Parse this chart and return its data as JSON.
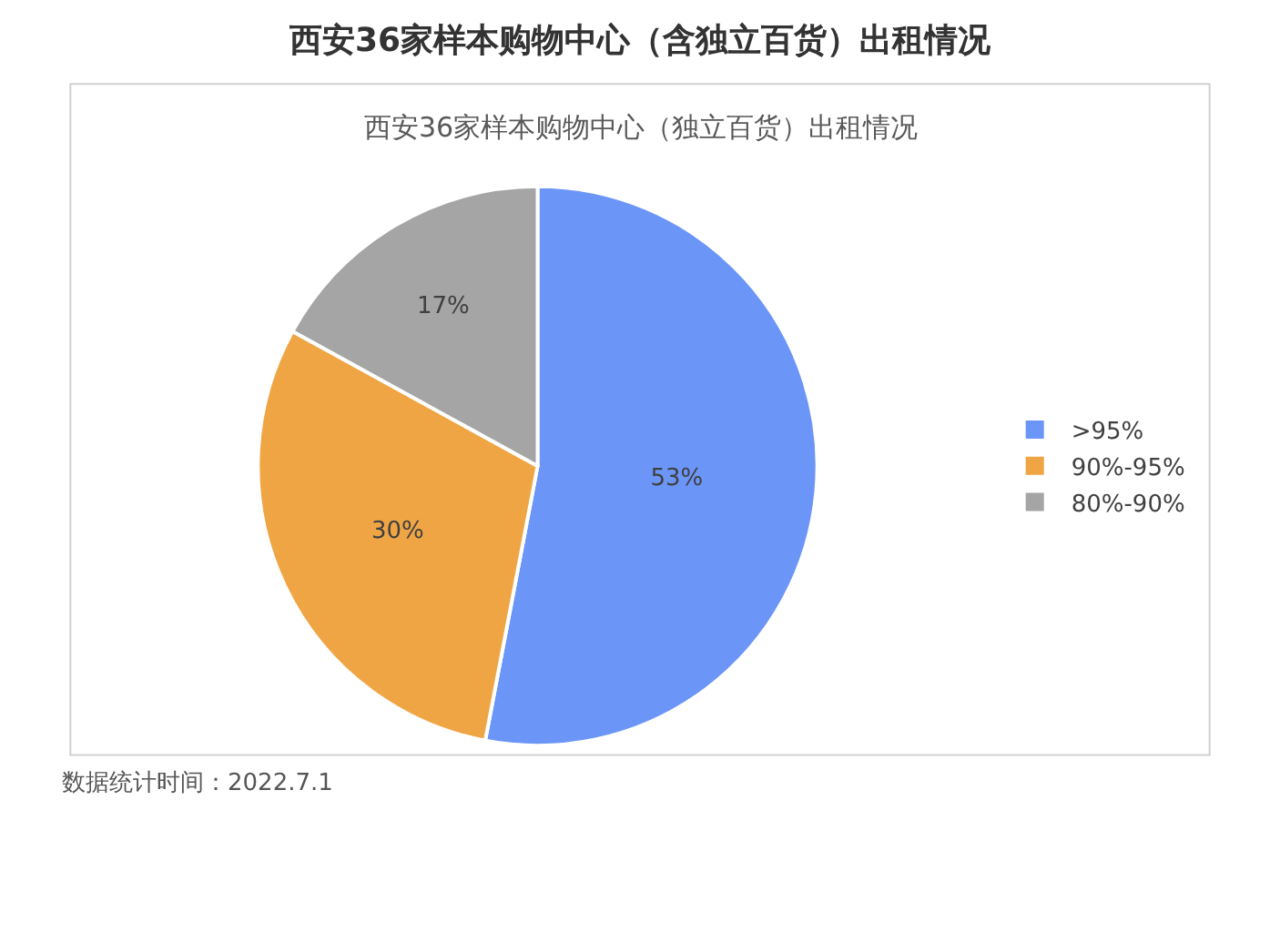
{
  "chart_data": {
    "type": "pie",
    "title": "西安36家样本购物中心（含独立百货）出租情况",
    "subtitle": "西安36家样本购物中心（独立百货）出租情况",
    "categories": [
      ">95%",
      "90%-95%",
      "80%-90%"
    ],
    "values": [
      53,
      30,
      17
    ],
    "value_labels": [
      "53%",
      "30%",
      "17%"
    ],
    "colors": [
      "#6b96f8",
      "#f0a545",
      "#a5a5a5"
    ],
    "legend": "right",
    "annotations": [
      "数据统计时间：2022.7.1"
    ]
  }
}
